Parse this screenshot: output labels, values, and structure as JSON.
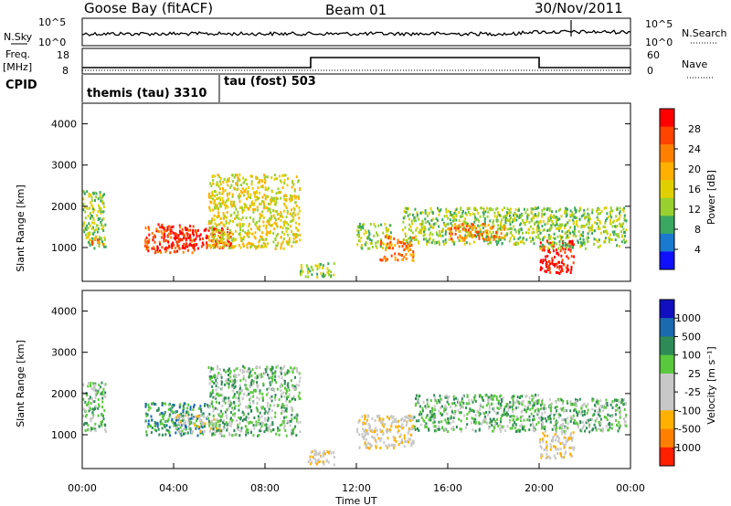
{
  "header": {
    "title": "Goose Bay (fitACF)",
    "beam": "Beam 01",
    "date": "30/Nov/2011"
  },
  "params": {
    "nsky_label": "N.Sky",
    "nsearch_label": "N.Search",
    "freq_label_1": "Freq.",
    "freq_label_2": "[MHz]",
    "nave_label": "Nave",
    "cpid_label": "CPID",
    "left_ticks_top": [
      "10^5",
      "10^0"
    ],
    "right_ticks_top": [
      "10^5",
      "10^0"
    ],
    "freq_ticks": [
      "18",
      "8"
    ],
    "nave_ticks": [
      "60",
      "0"
    ],
    "cpid_1": "themis (tau) 3310",
    "cpid_2": "tau (fost) 503",
    "cpid_change_hour": 6.0,
    "freq_step": {
      "start_hour": 10.0,
      "end_hour": 20.0
    }
  },
  "panels": {
    "yaxis_label": "Slant Range [km]",
    "y_ticks": [
      "4000",
      "3000",
      "2000",
      "1000"
    ],
    "x_ticks": [
      "00:00",
      "04:00",
      "08:00",
      "12:00",
      "16:00",
      "20:00",
      "00:00"
    ],
    "xaxis_label": "Time UT"
  },
  "power_scale": {
    "label": "Power [dB]",
    "ticks": [
      "28",
      "24",
      "20",
      "16",
      "12",
      "8",
      "4"
    ],
    "colors": [
      "#ff0000",
      "#ff4400",
      "#ff8000",
      "#ffb000",
      "#e0d000",
      "#98d030",
      "#3aa860",
      "#1a7ad0",
      "#1010ff"
    ]
  },
  "velocity_scale": {
    "label": "Velocity [m s⁻¹]",
    "ticks": [
      "1000",
      "500",
      "100",
      "25",
      "-25",
      "-100",
      "-500",
      "-1000"
    ],
    "colors": [
      "#1010c0",
      "#1a6ab0",
      "#2e8b57",
      "#5ac83c",
      "#c8c8c8",
      "#c8c8c8",
      "#ffb000",
      "#ff8000",
      "#ff2000"
    ]
  },
  "chart_data": [
    {
      "type": "heatmap",
      "title": "",
      "xlabel": "Time UT",
      "ylabel": "Slant Range [km]",
      "xlim": [
        0,
        24
      ],
      "ylim": [
        180,
        4500
      ],
      "colorbar_label": "Power [dB]",
      "regions": [
        {
          "t": [
            0.0,
            1.0
          ],
          "r": [
            1000,
            2400
          ],
          "level": "8"
        },
        {
          "t": [
            0.2,
            0.9
          ],
          "r": [
            1100,
            1300
          ],
          "level": "20"
        },
        {
          "t": [
            2.7,
            5.0
          ],
          "r": [
            900,
            1600
          ],
          "level": "24"
        },
        {
          "t": [
            3.5,
            6.5
          ],
          "r": [
            1000,
            1500
          ],
          "level": "28"
        },
        {
          "t": [
            5.5,
            9.5
          ],
          "r": [
            1000,
            2800
          ],
          "level": "12"
        },
        {
          "t": [
            9.5,
            11.0
          ],
          "r": [
            300,
            650
          ],
          "level": "8"
        },
        {
          "t": [
            12.0,
            13.5
          ],
          "r": [
            1000,
            1600
          ],
          "level": "8"
        },
        {
          "t": [
            13.0,
            14.5
          ],
          "r": [
            700,
            1300
          ],
          "level": "20"
        },
        {
          "t": [
            14.0,
            20.0
          ],
          "r": [
            1100,
            2000
          ],
          "level": "8"
        },
        {
          "t": [
            16.0,
            18.5
          ],
          "r": [
            1200,
            1600
          ],
          "level": "20"
        },
        {
          "t": [
            20.0,
            21.5
          ],
          "r": [
            400,
            1200
          ],
          "level": "28"
        },
        {
          "t": [
            20.0,
            23.8
          ],
          "r": [
            1000,
            2000
          ],
          "level": "8"
        }
      ]
    },
    {
      "type": "heatmap",
      "title": "",
      "xlabel": "Time UT",
      "ylabel": "Slant Range [km]",
      "xlim": [
        0,
        24
      ],
      "ylim": [
        180,
        4500
      ],
      "colorbar_label": "Velocity [m s⁻¹]",
      "regions": [
        {
          "t": [
            0.0,
            1.0
          ],
          "r": [
            1100,
            2300
          ],
          "level": "25"
        },
        {
          "t": [
            2.7,
            5.5
          ],
          "r": [
            1000,
            1800
          ],
          "level": "100"
        },
        {
          "t": [
            4.0,
            6.0
          ],
          "r": [
            1100,
            1500
          ],
          "level": "-100"
        },
        {
          "t": [
            5.5,
            9.5
          ],
          "r": [
            1000,
            2700
          ],
          "level": "25"
        },
        {
          "t": [
            9.7,
            11.0
          ],
          "r": [
            300,
            650
          ],
          "level": "-100"
        },
        {
          "t": [
            12.0,
            14.5
          ],
          "r": [
            700,
            1500
          ],
          "level": "-100"
        },
        {
          "t": [
            14.5,
            20.0
          ],
          "r": [
            1100,
            2000
          ],
          "level": "25"
        },
        {
          "t": [
            20.0,
            21.5
          ],
          "r": [
            450,
            1100
          ],
          "level": "-100"
        },
        {
          "t": [
            20.0,
            23.8
          ],
          "r": [
            1100,
            1900
          ],
          "level": "25"
        }
      ]
    }
  ]
}
